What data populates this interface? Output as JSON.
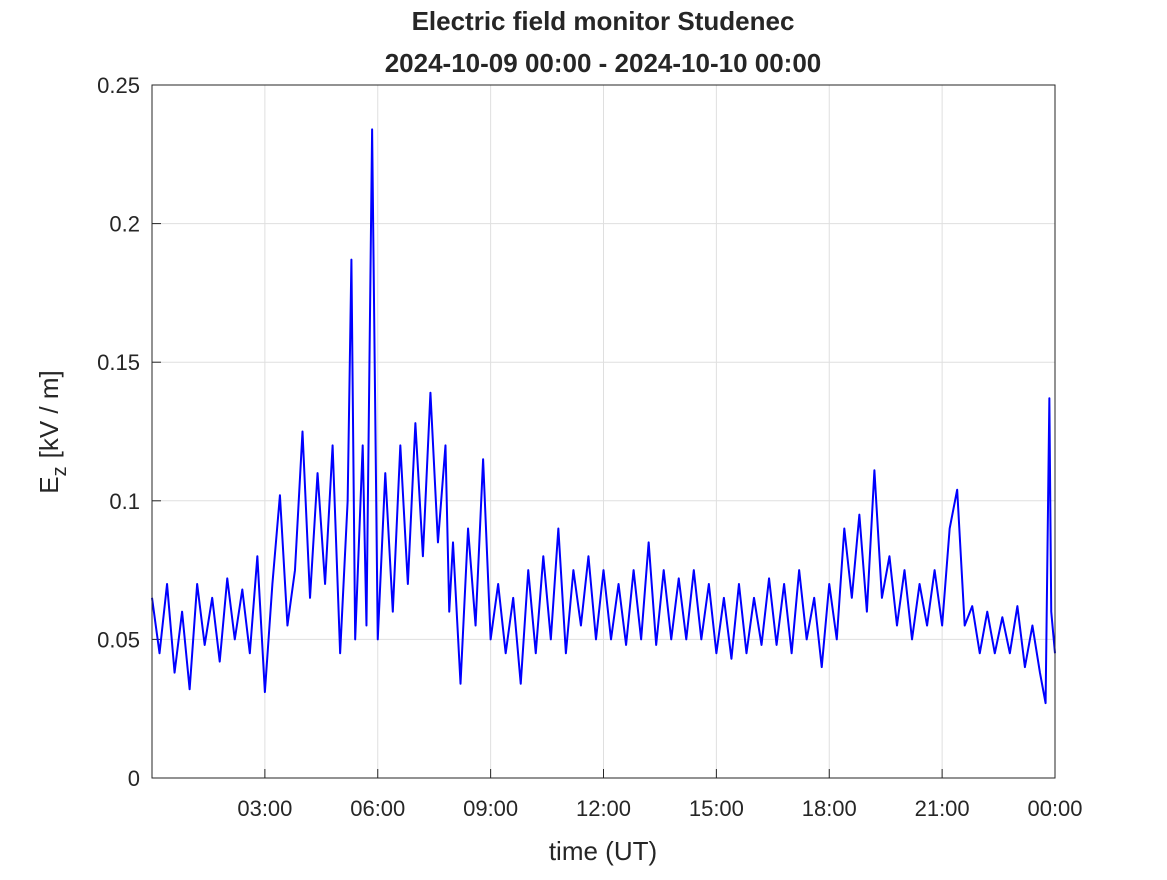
{
  "chart_data": {
    "type": "line",
    "title": "Electric field monitor Studenec",
    "subtitle": "2024-10-09 00:00 - 2024-10-10 00:00",
    "xlabel": "time (UT)",
    "ylabel": {
      "base": "E",
      "subscript": "z",
      "unit": "[kV / m]"
    },
    "xlim": [
      0,
      24
    ],
    "xticks": [
      {
        "value": 3,
        "label": "03:00"
      },
      {
        "value": 6,
        "label": "06:00"
      },
      {
        "value": 9,
        "label": "09:00"
      },
      {
        "value": 12,
        "label": "12:00"
      },
      {
        "value": 15,
        "label": "15:00"
      },
      {
        "value": 18,
        "label": "18:00"
      },
      {
        "value": 21,
        "label": "21:00"
      },
      {
        "value": 24,
        "label": "00:00"
      }
    ],
    "ylim": [
      0,
      0.25
    ],
    "yticks": [
      0,
      0.05,
      0.1,
      0.15,
      0.2,
      0.25
    ],
    "grid": true,
    "x": [
      0.0,
      0.2,
      0.4,
      0.6,
      0.8,
      1.0,
      1.2,
      1.4,
      1.6,
      1.8,
      2.0,
      2.2,
      2.4,
      2.6,
      2.8,
      3.0,
      3.2,
      3.4,
      3.6,
      3.8,
      4.0,
      4.2,
      4.4,
      4.6,
      4.8,
      5.0,
      5.2,
      5.3,
      5.4,
      5.6,
      5.7,
      5.85,
      6.0,
      6.2,
      6.4,
      6.6,
      6.8,
      7.0,
      7.2,
      7.4,
      7.6,
      7.8,
      7.9,
      8.0,
      8.2,
      8.4,
      8.6,
      8.8,
      9.0,
      9.2,
      9.4,
      9.6,
      9.8,
      10.0,
      10.2,
      10.4,
      10.6,
      10.8,
      11.0,
      11.2,
      11.4,
      11.6,
      11.8,
      12.0,
      12.2,
      12.4,
      12.6,
      12.8,
      13.0,
      13.2,
      13.4,
      13.6,
      13.8,
      14.0,
      14.2,
      14.4,
      14.6,
      14.8,
      15.0,
      15.2,
      15.4,
      15.6,
      15.8,
      16.0,
      16.2,
      16.4,
      16.6,
      16.8,
      17.0,
      17.2,
      17.4,
      17.6,
      17.8,
      18.0,
      18.2,
      18.4,
      18.6,
      18.8,
      19.0,
      19.2,
      19.4,
      19.6,
      19.8,
      20.0,
      20.2,
      20.4,
      20.6,
      20.8,
      21.0,
      21.2,
      21.4,
      21.6,
      21.8,
      22.0,
      22.2,
      22.4,
      22.6,
      22.8,
      23.0,
      23.2,
      23.4,
      23.6,
      23.75,
      23.85,
      23.9,
      24.0
    ],
    "series": [
      {
        "name": "Ez",
        "color": "#0000ff",
        "values": [
          0.065,
          0.045,
          0.07,
          0.038,
          0.06,
          0.032,
          0.07,
          0.048,
          0.065,
          0.042,
          0.072,
          0.05,
          0.068,
          0.045,
          0.08,
          0.031,
          0.07,
          0.102,
          0.055,
          0.075,
          0.125,
          0.065,
          0.11,
          0.07,
          0.12,
          0.045,
          0.1,
          0.187,
          0.05,
          0.12,
          0.055,
          0.234,
          0.05,
          0.11,
          0.06,
          0.12,
          0.07,
          0.128,
          0.08,
          0.139,
          0.085,
          0.12,
          0.06,
          0.085,
          0.034,
          0.09,
          0.055,
          0.115,
          0.05,
          0.07,
          0.045,
          0.065,
          0.034,
          0.075,
          0.045,
          0.08,
          0.05,
          0.09,
          0.045,
          0.075,
          0.055,
          0.08,
          0.05,
          0.075,
          0.05,
          0.07,
          0.048,
          0.075,
          0.05,
          0.085,
          0.048,
          0.075,
          0.05,
          0.072,
          0.05,
          0.075,
          0.05,
          0.07,
          0.045,
          0.065,
          0.043,
          0.07,
          0.045,
          0.065,
          0.048,
          0.072,
          0.048,
          0.07,
          0.045,
          0.075,
          0.05,
          0.065,
          0.04,
          0.07,
          0.05,
          0.09,
          0.065,
          0.095,
          0.06,
          0.111,
          0.065,
          0.08,
          0.055,
          0.075,
          0.05,
          0.07,
          0.055,
          0.075,
          0.055,
          0.09,
          0.104,
          0.055,
          0.062,
          0.045,
          0.06,
          0.045,
          0.058,
          0.045,
          0.062,
          0.04,
          0.055,
          0.038,
          0.027,
          0.137,
          0.06,
          0.045
        ]
      }
    ]
  }
}
